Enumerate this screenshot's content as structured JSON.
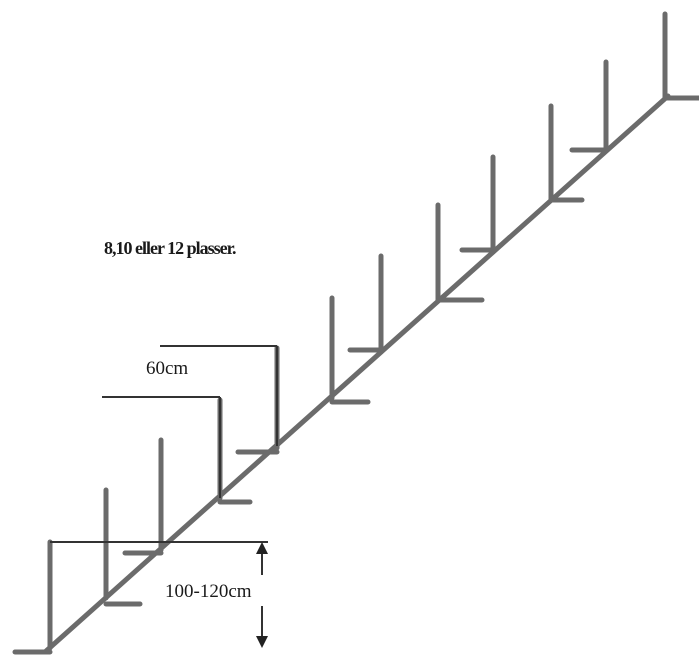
{
  "caption": "8,10 eller 12 plasser.",
  "dimensions": {
    "spacing": "60cm",
    "height": "100-120cm"
  },
  "colors": {
    "stroke": "#6b6b6b",
    "text": "#1a1a1a",
    "background": "#ffffff"
  }
}
